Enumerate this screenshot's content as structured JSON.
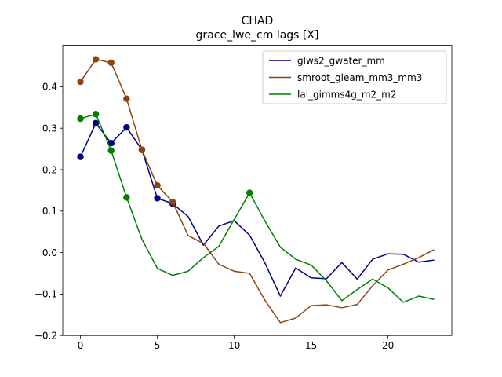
{
  "chart_data": {
    "type": "line",
    "title_line1": "CHAD",
    "title_line2": "grace_lwe_cm lags [X]",
    "xlabel": "",
    "ylabel": "",
    "xlim": [
      -1.15,
      24.15
    ],
    "ylim": [
      -0.2,
      0.5
    ],
    "xticks": [
      0,
      5,
      10,
      15,
      20
    ],
    "yticks": [
      -0.2,
      -0.1,
      0.0,
      0.1,
      0.2,
      0.3,
      0.4
    ],
    "ytick_labels": [
      "−0.2",
      "−0.1",
      "0.0",
      "0.1",
      "0.2",
      "0.3",
      "0.4"
    ],
    "grid": false,
    "legend_position": "top-right",
    "series": [
      {
        "name": "glws2_gwater_mm",
        "color": "#000080",
        "x": [
          0,
          1,
          2,
          3,
          4,
          5,
          6,
          7,
          8,
          9,
          10,
          11,
          12,
          13,
          14,
          15,
          16,
          17,
          18,
          19,
          20,
          21,
          22,
          23
        ],
        "values": [
          0.231,
          0.312,
          0.264,
          0.302,
          0.248,
          0.131,
          0.118,
          0.087,
          0.018,
          0.064,
          0.077,
          0.042,
          -0.025,
          -0.105,
          -0.037,
          -0.061,
          -0.063,
          -0.024,
          -0.064,
          -0.016,
          -0.003,
          -0.004,
          -0.023,
          -0.018
        ],
        "markers": [
          0,
          1,
          2,
          3,
          4,
          5,
          6
        ]
      },
      {
        "name": "smroot_gleam_mm3_mm3",
        "color": "#8B4513",
        "x": [
          0,
          1,
          2,
          3,
          4,
          5,
          6,
          7,
          8,
          9,
          10,
          11,
          12,
          13,
          14,
          15,
          16,
          17,
          18,
          19,
          20,
          21,
          22,
          23
        ],
        "values": [
          0.412,
          0.466,
          0.458,
          0.371,
          0.248,
          0.162,
          0.122,
          0.041,
          0.022,
          -0.028,
          -0.045,
          -0.05,
          -0.115,
          -0.169,
          -0.158,
          -0.128,
          -0.126,
          -0.133,
          -0.125,
          -0.08,
          -0.042,
          -0.028,
          -0.012,
          0.007
        ],
        "markers": [
          0,
          1,
          2,
          3,
          4,
          5,
          6
        ]
      },
      {
        "name": "lai_gimms4g_m2_m2",
        "color": "#008000",
        "x": [
          0,
          1,
          2,
          3,
          4,
          5,
          6,
          7,
          8,
          9,
          10,
          11,
          12,
          13,
          14,
          15,
          16,
          17,
          18,
          19,
          20,
          21,
          22,
          23
        ],
        "values": [
          0.323,
          0.334,
          0.246,
          0.133,
          0.032,
          -0.038,
          -0.055,
          -0.045,
          -0.012,
          0.015,
          0.08,
          0.144,
          0.076,
          0.013,
          -0.016,
          -0.03,
          -0.068,
          -0.116,
          -0.089,
          -0.064,
          -0.085,
          -0.12,
          -0.105,
          -0.113
        ],
        "markers": [
          0,
          1,
          2,
          3,
          11
        ]
      }
    ]
  }
}
